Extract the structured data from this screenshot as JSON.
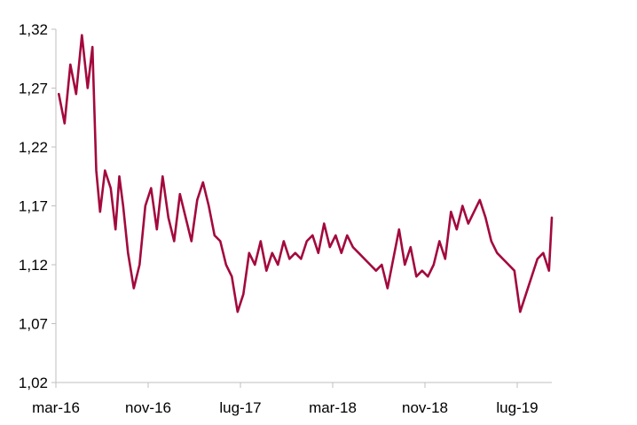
{
  "chart_data": {
    "type": "line",
    "title": "",
    "xlabel": "",
    "ylabel": "",
    "ylim": [
      1.02,
      1.32
    ],
    "yticks": [
      "1,02",
      "1,07",
      "1,12",
      "1,17",
      "1,22",
      "1,27",
      "1,32"
    ],
    "ytick_values": [
      1.02,
      1.07,
      1.12,
      1.17,
      1.22,
      1.27,
      1.32
    ],
    "xticks": [
      "mar-16",
      "nov-16",
      "lug-17",
      "mar-18",
      "nov-18",
      "lug-19"
    ],
    "xtick_dates": [
      "2016-03",
      "2016-11",
      "2017-07",
      "2018-03",
      "2018-11",
      "2019-07"
    ],
    "xlim": [
      "2016-03",
      "2019-10"
    ],
    "grid": false,
    "legend": "none",
    "line_color": "#a3093d",
    "series": [
      {
        "x": [
          "2016-03",
          "2016-03",
          "2016-04",
          "2016-04",
          "2016-05",
          "2016-05",
          "2016-06",
          "2016-06",
          "2016-06",
          "2016-07",
          "2016-07",
          "2016-08",
          "2016-08",
          "2016-08",
          "2016-09",
          "2016-09",
          "2016-10",
          "2016-10",
          "2016-11",
          "2016-11",
          "2016-12",
          "2016-12",
          "2017-01",
          "2017-01",
          "2017-02",
          "2017-02",
          "2017-03",
          "2017-03",
          "2017-04",
          "2017-04",
          "2017-05",
          "2017-05",
          "2017-06",
          "2017-06",
          "2017-07",
          "2017-07",
          "2017-08",
          "2017-08",
          "2017-09",
          "2017-09",
          "2017-10",
          "2017-10",
          "2017-11",
          "2017-11",
          "2017-12",
          "2017-12",
          "2018-01",
          "2018-01",
          "2018-02",
          "2018-02",
          "2018-03",
          "2018-03",
          "2018-04",
          "2018-04",
          "2018-05",
          "2018-05",
          "2018-06",
          "2018-06",
          "2018-07",
          "2018-07",
          "2018-08",
          "2018-08",
          "2018-09",
          "2018-09",
          "2018-10",
          "2018-10",
          "2018-11",
          "2018-11",
          "2018-12",
          "2018-12",
          "2019-01",
          "2019-01",
          "2019-02",
          "2019-02",
          "2019-03",
          "2019-03",
          "2019-04",
          "2019-04",
          "2019-05",
          "2019-05",
          "2019-06",
          "2019-06",
          "2019-07",
          "2019-07",
          "2019-08",
          "2019-08",
          "2019-09",
          "2019-09",
          "2019-10"
        ],
        "values": [
          1.265,
          1.24,
          1.29,
          1.265,
          1.315,
          1.27,
          1.305,
          1.2,
          1.165,
          1.2,
          1.185,
          1.15,
          1.195,
          1.17,
          1.13,
          1.1,
          1.12,
          1.17,
          1.185,
          1.15,
          1.195,
          1.16,
          1.14,
          1.18,
          1.16,
          1.14,
          1.175,
          1.19,
          1.17,
          1.145,
          1.14,
          1.12,
          1.11,
          1.08,
          1.095,
          1.13,
          1.12,
          1.14,
          1.115,
          1.13,
          1.12,
          1.14,
          1.125,
          1.13,
          1.125,
          1.14,
          1.145,
          1.13,
          1.155,
          1.135,
          1.145,
          1.13,
          1.145,
          1.135,
          1.13,
          1.125,
          1.12,
          1.115,
          1.12,
          1.1,
          1.125,
          1.15,
          1.12,
          1.135,
          1.11,
          1.115,
          1.11,
          1.12,
          1.14,
          1.125,
          1.165,
          1.15,
          1.17,
          1.155,
          1.165,
          1.175,
          1.16,
          1.14,
          1.13,
          1.125,
          1.12,
          1.115,
          1.08,
          1.095,
          1.11,
          1.125,
          1.13,
          1.115,
          1.16
        ]
      }
    ]
  }
}
